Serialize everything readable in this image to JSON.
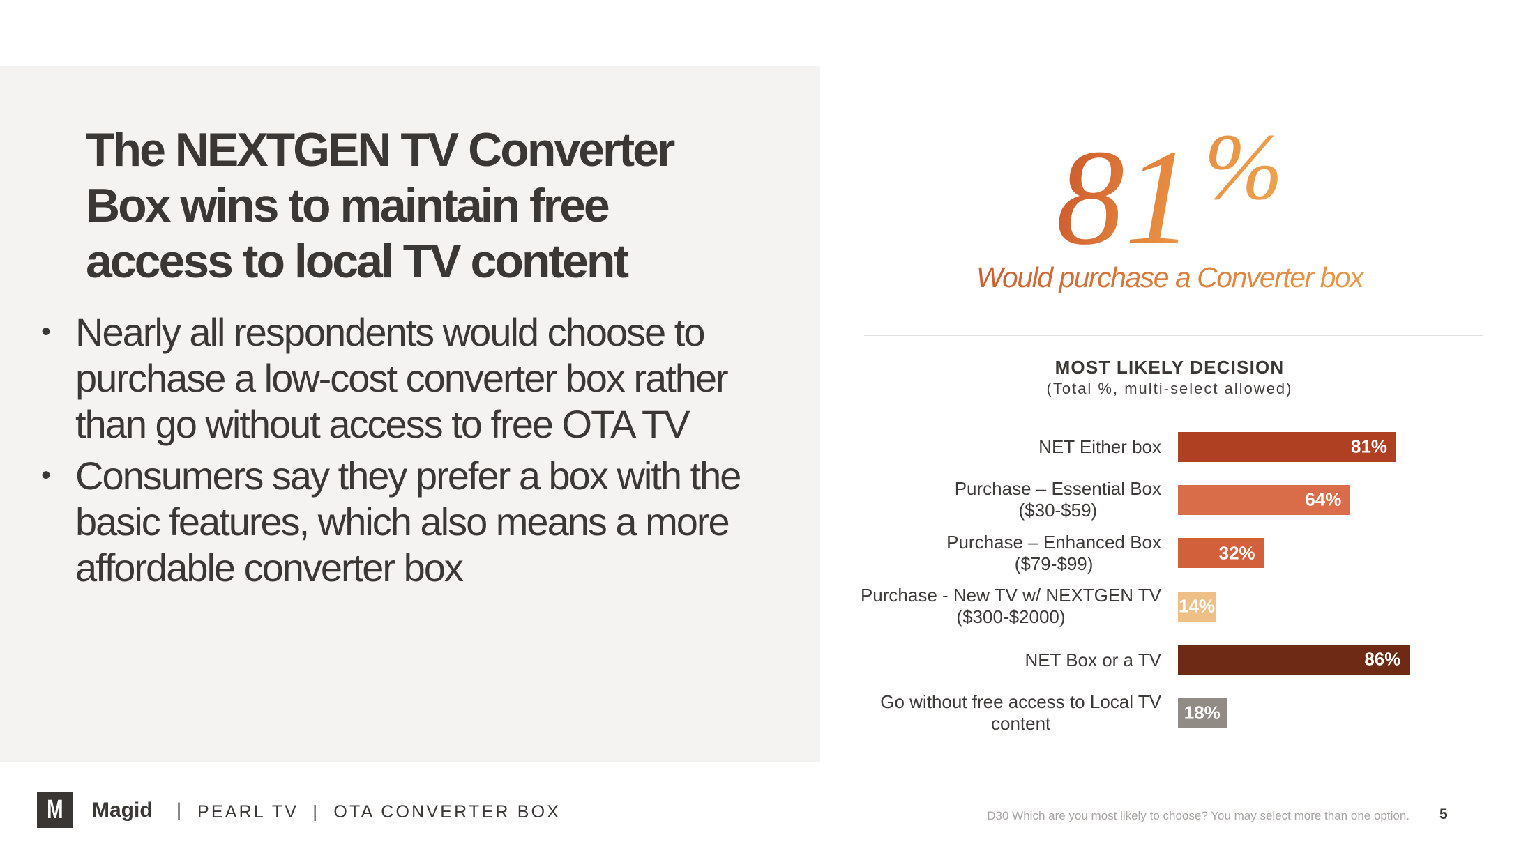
{
  "slide": {
    "title": "The NEXTGEN TV Converter\nBox wins to maintain free\naccess to local TV content",
    "bullets": [
      "Nearly all respondents would choose to\npurchase a low-cost converter box rather\nthan go without access to free OTA TV",
      "Consumers say they prefer a box with the\nbasic features, which also means a more\naffordable converter box"
    ],
    "bullet_glyph": "•"
  },
  "stat": {
    "number": "81",
    "percent_sign": "%",
    "caption": "Would purchase a Converter box",
    "gradient_start": "#cc5a2d",
    "gradient_end": "#f0a44e"
  },
  "chart_data": {
    "type": "bar",
    "orientation": "horizontal",
    "title": "MOST LIKELY DECISION",
    "subtitle": "(Total %, multi-select allowed)",
    "categories": [
      "NET Either box",
      "Purchase – Essential Box\n($30-$59)",
      "Purchase – Enhanced Box\n($79-$99)",
      "Purchase - New TV w/ NEXTGEN TV\n($300-$2000)",
      "NET Box or a TV",
      "Go without free access to Local TV\ncontent"
    ],
    "values": [
      81,
      64,
      32,
      14,
      86,
      18
    ],
    "value_labels": [
      "81%",
      "64%",
      "32%",
      "14%",
      "86%",
      "18%"
    ],
    "colors": [
      "#af4022",
      "#d96c49",
      "#d2603b",
      "#eec088",
      "#6e2a15",
      "#918b85"
    ],
    "value_label_color": "#ffffff",
    "xlim": [
      0,
      100
    ],
    "grid": false,
    "legend": false
  },
  "footer": {
    "logo_letter": "M",
    "logo_bg": "#3a3633",
    "brand": "Magid",
    "separator": "|",
    "breadcrumb": "PEARL TV  |  OTA CONVERTER BOX",
    "footnote": "D30 Which are you most likely to choose? You may select more than one option.",
    "page_number": "5"
  }
}
